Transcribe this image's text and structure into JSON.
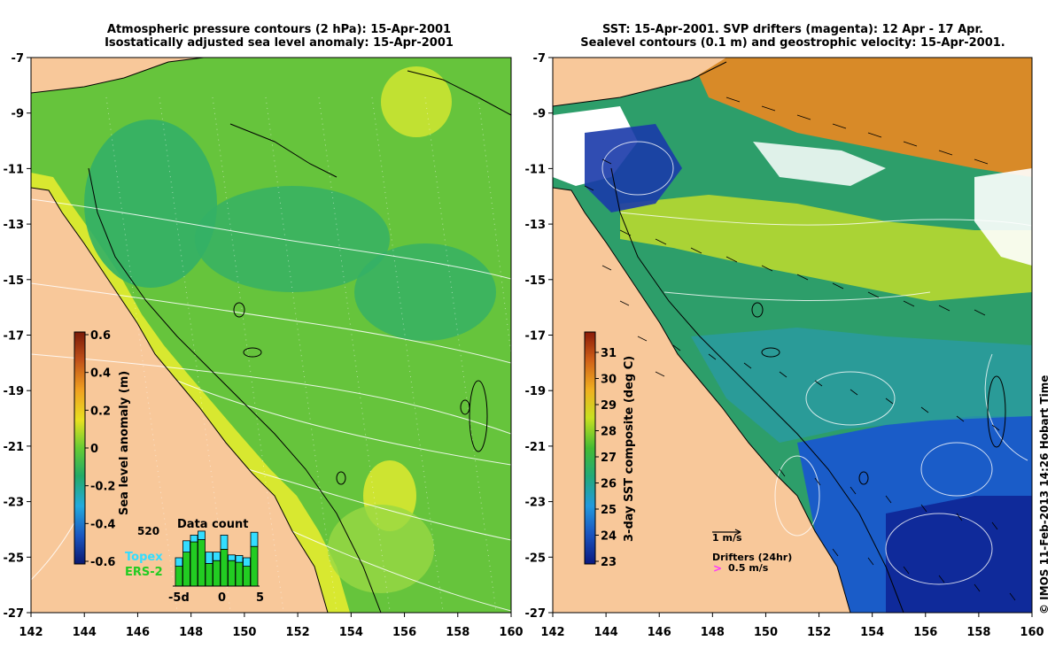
{
  "left_panel": {
    "title_line1": "Atmospheric pressure contours (2 hPa): 15-Apr-2001",
    "title_line2": "Isostatically adjusted sea level anomaly: 15-Apr-2001",
    "colorbar": {
      "label": "Sea level anomaly (m)",
      "ticks": [
        "0.6",
        "0.4",
        "0.2",
        "0",
        "-0.2",
        "-0.4",
        "-0.6"
      ]
    },
    "inset": {
      "title": "Data count",
      "max_label": "520",
      "legend_topex": "Topex",
      "legend_ers": "ERS-2",
      "x_left": "-5d",
      "x_mid": "0",
      "x_right": "5",
      "bars": [
        {
          "topex": 0.15,
          "ers": 0.35
        },
        {
          "topex": 0.2,
          "ers": 0.6
        },
        {
          "topex": 0.12,
          "ers": 0.78
        },
        {
          "topex": 0.15,
          "ers": 0.82
        },
        {
          "topex": 0.2,
          "ers": 0.4
        },
        {
          "topex": 0.15,
          "ers": 0.45
        },
        {
          "topex": 0.25,
          "ers": 0.65
        },
        {
          "topex": 0.1,
          "ers": 0.45
        },
        {
          "topex": 0.12,
          "ers": 0.42
        },
        {
          "topex": 0.15,
          "ers": 0.35
        },
        {
          "topex": 0.25,
          "ers": 0.7
        }
      ]
    }
  },
  "right_panel": {
    "title_line1": "SST: 15-Apr-2001. SVP drifters (magenta): 12 Apr - 17 Apr.",
    "title_line2": "Sealevel contours (0.1 m) and geostrophic velocity: 15-Apr-2001.",
    "colorbar": {
      "label": "3-day SST composite (deg C)",
      "ticks": [
        "31",
        "30",
        "29",
        "28",
        "27",
        "26",
        "25",
        "24",
        "23"
      ]
    },
    "scale_label": "1 m/s",
    "drifters_label": "Drifters (24hr)",
    "drifters_speed": "0.5 m/s"
  },
  "axes": {
    "x_ticks": [
      "142",
      "144",
      "146",
      "148",
      "150",
      "152",
      "154",
      "156",
      "158",
      "160"
    ],
    "y_ticks": [
      "-7",
      "-9",
      "-11",
      "-13",
      "-15",
      "-17",
      "-19",
      "-21",
      "-23",
      "-25",
      "-27"
    ]
  },
  "credit": "© IMOS 11-Feb-2013 14:26 Hobart Time",
  "colors": {
    "land": "#f8c89a",
    "ocean_left": "#5cc43c",
    "ocean_right": "#2d9e6a",
    "drifter": "#ff33ff"
  }
}
